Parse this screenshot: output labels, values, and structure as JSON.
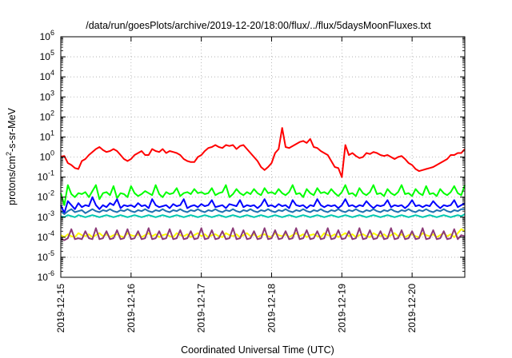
{
  "chart_data": {
    "type": "line",
    "title": "/data/run/goesPlots/archive/2019-12-20/18:00/flux/../flux/5daysMoonFluxes.txt",
    "xlabel": "Coordinated Universal Time (UTC)",
    "ylabel": "protons/cm",
    "ylabel_sup": "2",
    "ylabel_tail": "-s-sr-MeV",
    "y_scale": "log",
    "ylim": [
      -6,
      6
    ],
    "ytick_base": "10",
    "yticks": [
      "6",
      "5",
      "4",
      "3",
      "2",
      "1",
      "0",
      "-1",
      "-2",
      "-3",
      "-4",
      "-5",
      "-6"
    ],
    "xlim": [
      "2019-12-15",
      "2019-12-20T18:00"
    ],
    "xticks": [
      "2019-12-15",
      "2019-12-16",
      "2019-12-17",
      "2019-12-18",
      "2019-12-19",
      "2019-12-20"
    ],
    "grid": true,
    "x": [
      0.0,
      0.05,
      0.1,
      0.15,
      0.2,
      0.25,
      0.3,
      0.35,
      0.4,
      0.45,
      0.5,
      0.55,
      0.6,
      0.65,
      0.7,
      0.75,
      0.8,
      0.85,
      0.9,
      0.95,
      1.0,
      1.05,
      1.1,
      1.15,
      1.2,
      1.25,
      1.3,
      1.35,
      1.4,
      1.45,
      1.5,
      1.55,
      1.6,
      1.65,
      1.7,
      1.75,
      1.8,
      1.85,
      1.9,
      1.95,
      2.0,
      2.05,
      2.1,
      2.15,
      2.2,
      2.25,
      2.3,
      2.35,
      2.4,
      2.45,
      2.5,
      2.55,
      2.6,
      2.65,
      2.7,
      2.75,
      2.8,
      2.85,
      2.9,
      2.95,
      3.0,
      3.05,
      3.1,
      3.15,
      3.2,
      3.25,
      3.3,
      3.35,
      3.4,
      3.45,
      3.5,
      3.55,
      3.6,
      3.65,
      3.7,
      3.75,
      3.8,
      3.85,
      3.9,
      3.95,
      4.0,
      4.05,
      4.1,
      4.15,
      4.2,
      4.25,
      4.3,
      4.35,
      4.4,
      4.45,
      4.5,
      4.55,
      4.6,
      4.65,
      4.7,
      4.75,
      4.8,
      4.85,
      4.9,
      4.95,
      5.0,
      5.05,
      5.1,
      5.15,
      5.2,
      5.25,
      5.3,
      5.35,
      5.4,
      5.45,
      5.5,
      5.55,
      5.6,
      5.65,
      5.7,
      5.75
    ],
    "series": [
      {
        "color": "#ff0000",
        "values": [
          0.02,
          0.05,
          -0.3,
          -0.4,
          -0.55,
          -0.6,
          -0.2,
          -0.1,
          0.1,
          0.25,
          0.4,
          0.5,
          0.35,
          0.25,
          0.3,
          0.4,
          0.3,
          0.1,
          -0.1,
          -0.2,
          -0.1,
          0.1,
          0.2,
          0.3,
          0.1,
          0.1,
          0.4,
          0.3,
          0.25,
          0.4,
          0.2,
          0.3,
          0.25,
          0.2,
          0.1,
          -0.1,
          -0.2,
          -0.25,
          -0.25,
          0.0,
          0.1,
          0.3,
          0.45,
          0.5,
          0.6,
          0.5,
          0.45,
          0.6,
          0.55,
          0.6,
          0.4,
          0.55,
          0.6,
          0.4,
          0.2,
          0.0,
          -0.2,
          -0.5,
          -0.65,
          -0.5,
          -0.3,
          0.2,
          0.4,
          1.45,
          0.5,
          0.45,
          0.55,
          0.65,
          0.75,
          0.8,
          0.7,
          0.9,
          0.5,
          0.45,
          0.3,
          0.2,
          0.1,
          -0.2,
          -0.5,
          -0.55,
          -1.0,
          0.6,
          0.1,
          0.2,
          0.05,
          -0.05,
          0.0,
          0.2,
          0.15,
          0.25,
          0.2,
          0.1,
          0.05,
          0.1,
          0.0,
          -0.1,
          0.0,
          0.05,
          -0.1,
          -0.3,
          -0.4,
          -0.6,
          -0.7,
          -0.65,
          -0.6,
          -0.55,
          -0.5,
          -0.4,
          -0.3,
          -0.2,
          -0.1,
          0.1,
          0.1,
          0.2,
          0.2,
          0.4
        ]
      },
      {
        "color": "#00ff00",
        "values": [
          -1.8,
          -2.4,
          -1.4,
          -1.85,
          -2.0,
          -1.8,
          -1.85,
          -1.75,
          -2.0,
          -1.7,
          -1.4,
          -2.1,
          -1.8,
          -1.75,
          -1.9,
          -1.45,
          -2.05,
          -1.8,
          -1.85,
          -2.0,
          -1.45,
          -1.8,
          -1.95,
          -1.85,
          -1.7,
          -1.8,
          -1.9,
          -1.4,
          -1.85,
          -2.0,
          -1.75,
          -1.85,
          -1.8,
          -1.55,
          -1.95,
          -1.8,
          -1.75,
          -1.85,
          -1.6,
          -1.8,
          -1.75,
          -1.85,
          -1.8,
          -1.55,
          -1.9,
          -1.8,
          -1.75,
          -1.4,
          -2.0,
          -1.85,
          -1.6,
          -1.8,
          -1.9,
          -1.75,
          -1.85,
          -1.6,
          -1.8,
          -1.9,
          -1.55,
          -1.8,
          -1.75,
          -1.85,
          -1.6,
          -1.8,
          -1.9,
          -1.75,
          -1.4,
          -1.85,
          -1.8,
          -2.0,
          -1.6,
          -1.8,
          -1.9,
          -1.55,
          -1.8,
          -1.75,
          -1.85,
          -1.6,
          -1.8,
          -1.95,
          -1.75,
          -1.4,
          -1.85,
          -1.8,
          -1.95,
          -1.55,
          -1.8,
          -1.9,
          -1.75,
          -1.4,
          -1.85,
          -1.8,
          -1.95,
          -1.6,
          -1.8,
          -1.9,
          -1.75,
          -1.4,
          -1.85,
          -1.8,
          -1.95,
          -1.6,
          -1.8,
          -1.9,
          -1.45,
          -1.85,
          -1.8,
          -1.95,
          -1.6,
          -1.8,
          -1.9,
          -1.75,
          -1.45,
          -1.8,
          -1.9,
          -1.4
        ]
      },
      {
        "color": "#0000ff",
        "values": [
          -2.4,
          -2.8,
          -2.2,
          -2.4,
          -2.6,
          -2.3,
          -2.5,
          -2.4,
          -2.45,
          -2.0,
          -2.4,
          -2.6,
          -2.4,
          -2.5,
          -2.3,
          -2.4,
          -2.1,
          -2.55,
          -2.4,
          -2.45,
          -2.4,
          -2.5,
          -2.3,
          -2.45,
          -2.4,
          -2.55,
          -2.1,
          -2.4,
          -2.5,
          -2.45,
          -2.4,
          -2.55,
          -2.35,
          -2.45,
          -2.4,
          -2.1,
          -2.55,
          -2.45,
          -2.4,
          -2.5,
          -2.35,
          -2.45,
          -2.4,
          -2.15,
          -2.5,
          -2.45,
          -2.4,
          -2.55,
          -2.35,
          -2.4,
          -2.45,
          -2.15,
          -2.5,
          -2.4,
          -2.45,
          -2.4,
          -2.55,
          -2.4,
          -2.1,
          -2.45,
          -2.4,
          -2.5,
          -2.35,
          -2.45,
          -2.4,
          -2.55,
          -2.15,
          -2.4,
          -2.45,
          -2.4,
          -2.55,
          -2.4,
          -2.45,
          -2.1,
          -2.4,
          -2.5,
          -2.4,
          -2.45,
          -2.4,
          -2.55,
          -2.4,
          -2.1,
          -2.45,
          -2.4,
          -2.5,
          -2.4,
          -2.45,
          -2.2,
          -2.4,
          -2.55,
          -2.4,
          -2.45,
          -2.4,
          -2.15,
          -2.5,
          -2.4,
          -2.45,
          -2.4,
          -2.55,
          -2.4,
          -2.15,
          -2.45,
          -2.4,
          -2.5,
          -2.4,
          -2.45,
          -2.2,
          -2.4,
          -2.55,
          -2.4,
          -2.45,
          -2.4,
          -2.15,
          -2.5,
          -2.4,
          -2.3
        ]
      },
      {
        "color": "#1f6fb0",
        "values": [
          -2.7,
          -2.85,
          -2.7,
          -2.6,
          -2.75,
          -2.7,
          -2.65,
          -2.8,
          -2.7,
          -2.6,
          -2.7,
          -2.75,
          -2.65,
          -2.7,
          -2.6,
          -2.7,
          -2.75,
          -2.65,
          -2.7,
          -2.6,
          -2.7,
          -2.75,
          -2.65,
          -2.7,
          -2.6,
          -2.7,
          -2.75,
          -2.65,
          -2.7,
          -2.6,
          -2.7,
          -2.75,
          -2.65,
          -2.7,
          -2.6,
          -2.7,
          -2.75,
          -2.65,
          -2.7,
          -2.6,
          -2.7,
          -2.75,
          -2.65,
          -2.7,
          -2.6,
          -2.7,
          -2.75,
          -2.65,
          -2.7,
          -2.6,
          -2.7,
          -2.75,
          -2.65,
          -2.7,
          -2.6,
          -2.7,
          -2.75,
          -2.65,
          -2.7,
          -2.6,
          -2.7,
          -2.75,
          -2.65,
          -2.7,
          -2.6,
          -2.7,
          -2.75,
          -2.65,
          -2.7,
          -2.6,
          -2.7,
          -2.75,
          -2.65,
          -2.7,
          -2.6,
          -2.7,
          -2.75,
          -2.65,
          -2.7,
          -2.6,
          -2.7,
          -2.75,
          -2.65,
          -2.7,
          -2.6,
          -2.7,
          -2.75,
          -2.65,
          -2.7,
          -2.6,
          -2.7,
          -2.75,
          -2.65,
          -2.7,
          -2.6,
          -2.7,
          -2.75,
          -2.65,
          -2.7,
          -2.6,
          -2.7,
          -2.75,
          -2.65,
          -2.7,
          -2.6,
          -2.7,
          -2.75,
          -2.65,
          -2.7,
          -2.6,
          -2.7,
          -2.75,
          -2.65,
          -2.7,
          -2.6,
          -2.6
        ]
      },
      {
        "color": "#00c8b0",
        "values": [
          -2.95,
          -3.0,
          -2.9,
          -2.95,
          -3.0,
          -2.9,
          -2.95,
          -3.0,
          -2.95,
          -2.9,
          -2.95,
          -3.0,
          -2.95,
          -2.9,
          -2.95,
          -3.0,
          -2.95,
          -2.9,
          -2.95,
          -3.0,
          -2.95,
          -2.9,
          -2.95,
          -3.0,
          -2.95,
          -2.9,
          -2.95,
          -3.0,
          -2.95,
          -2.9,
          -2.95,
          -3.0,
          -2.95,
          -2.9,
          -2.95,
          -3.0,
          -2.95,
          -2.9,
          -2.95,
          -3.0,
          -2.95,
          -2.9,
          -2.95,
          -3.0,
          -2.95,
          -2.9,
          -2.95,
          -3.0,
          -2.95,
          -2.9,
          -2.95,
          -3.0,
          -2.95,
          -2.9,
          -2.95,
          -3.0,
          -2.95,
          -2.9,
          -2.95,
          -3.0,
          -2.95,
          -2.9,
          -2.95,
          -3.0,
          -2.95,
          -2.9,
          -2.95,
          -3.0,
          -2.95,
          -2.9,
          -2.95,
          -3.0,
          -2.95,
          -2.9,
          -2.95,
          -3.0,
          -2.95,
          -2.9,
          -2.95,
          -3.0,
          -2.95,
          -2.9,
          -2.95,
          -3.0,
          -2.95,
          -2.9,
          -2.95,
          -3.0,
          -2.95,
          -2.9,
          -2.95,
          -3.0,
          -2.95,
          -2.9,
          -2.95,
          -3.0,
          -2.95,
          -2.9,
          -2.95,
          -3.0,
          -2.95,
          -2.9,
          -2.95,
          -3.0,
          -2.95,
          -2.9,
          -2.95,
          -3.0,
          -2.95,
          -2.9,
          -2.95,
          -3.0,
          -2.95,
          -2.9,
          -2.95,
          -2.85
        ]
      },
      {
        "color": "#ffff00",
        "values": [
          -3.9,
          -4.0,
          -3.85,
          -3.95,
          -4.0,
          -3.8,
          -3.9,
          -3.95,
          -3.85,
          -4.0,
          -3.9,
          -3.8,
          -3.95,
          -3.85,
          -4.0,
          -3.9,
          -3.85,
          -3.95,
          -4.0,
          -3.8,
          -3.9,
          -3.95,
          -3.85,
          -4.0,
          -3.9,
          -3.8,
          -3.95,
          -3.85,
          -4.0,
          -3.9,
          -3.85,
          -3.95,
          -4.0,
          -3.8,
          -3.9,
          -3.95,
          -3.85,
          -4.0,
          -3.9,
          -3.8,
          -3.95,
          -3.85,
          -4.0,
          -3.9,
          -3.85,
          -3.95,
          -4.0,
          -3.8,
          -3.9,
          -3.95,
          -3.85,
          -4.0,
          -3.9,
          -3.8,
          -3.95,
          -3.85,
          -4.0,
          -3.9,
          -3.85,
          -3.95,
          -4.0,
          -3.8,
          -3.9,
          -3.95,
          -3.85,
          -4.0,
          -3.9,
          -3.8,
          -3.95,
          -3.85,
          -4.0,
          -3.9,
          -3.85,
          -3.95,
          -4.0,
          -3.8,
          -3.9,
          -3.95,
          -3.85,
          -4.0,
          -3.9,
          -3.8,
          -3.95,
          -3.85,
          -4.0,
          -3.9,
          -3.85,
          -3.95,
          -4.0,
          -3.8,
          -3.9,
          -3.95,
          -3.85,
          -4.0,
          -3.9,
          -3.8,
          -3.95,
          -3.85,
          -4.0,
          -3.9,
          -3.85,
          -3.95,
          -4.0,
          -3.8,
          -3.9,
          -3.95,
          -3.85,
          -4.0,
          -3.9,
          -3.8,
          -3.95,
          -3.85,
          -4.0,
          -3.8,
          -3.6,
          -3.7
        ]
      },
      {
        "color": "#8b3a78",
        "values": [
          -4.1,
          -4.15,
          -4.05,
          -3.6,
          -4.1,
          -4.05,
          -4.1,
          -3.7,
          -4.05,
          -4.1,
          -3.55,
          -4.1,
          -4.05,
          -3.7,
          -4.1,
          -4.05,
          -3.65,
          -4.1,
          -4.05,
          -3.6,
          -4.1,
          -4.05,
          -3.7,
          -4.1,
          -4.05,
          -3.55,
          -4.1,
          -4.05,
          -3.7,
          -4.1,
          -4.05,
          -3.6,
          -4.1,
          -4.05,
          -3.65,
          -4.1,
          -4.05,
          -3.7,
          -4.1,
          -4.05,
          -3.55,
          -4.1,
          -4.05,
          -3.65,
          -4.1,
          -4.05,
          -3.7,
          -4.1,
          -4.05,
          -3.55,
          -4.1,
          -4.05,
          -3.65,
          -4.1,
          -4.05,
          -3.7,
          -4.1,
          -4.05,
          -3.55,
          -4.1,
          -4.05,
          -3.65,
          -4.1,
          -4.05,
          -3.7,
          -4.1,
          -4.05,
          -3.55,
          -4.1,
          -4.05,
          -3.65,
          -4.1,
          -4.05,
          -3.7,
          -4.1,
          -4.05,
          -3.55,
          -4.1,
          -4.05,
          -3.65,
          -4.1,
          -4.05,
          -3.7,
          -4.1,
          -4.05,
          -3.55,
          -4.1,
          -4.05,
          -3.65,
          -4.1,
          -4.05,
          -3.7,
          -4.1,
          -4.05,
          -3.55,
          -4.1,
          -4.05,
          -3.65,
          -4.1,
          -4.05,
          -3.7,
          -4.1,
          -4.05,
          -3.55,
          -4.1,
          -4.05,
          -3.65,
          -4.1,
          -4.05,
          -3.7,
          -4.1,
          -4.05,
          -3.6,
          -4.1,
          -3.9,
          -3.95
        ]
      }
    ]
  }
}
